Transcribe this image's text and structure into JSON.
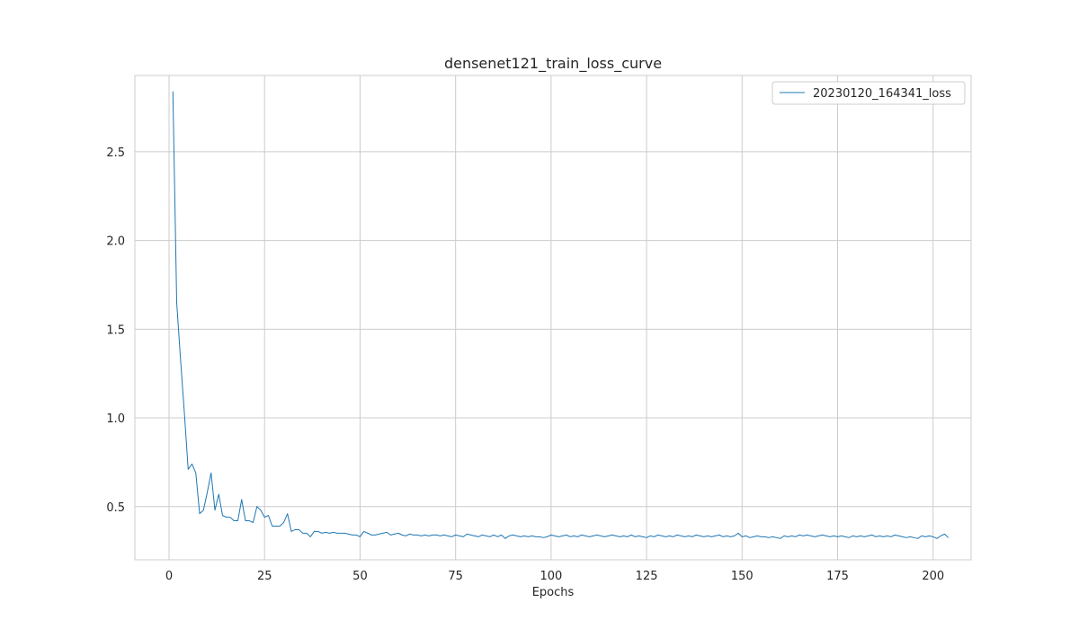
{
  "chart_data": {
    "type": "line",
    "title": "densenet121_train_loss_curve",
    "xlabel": "Epochs",
    "ylabel": "",
    "xlim": [
      -8.95,
      209.95
    ],
    "ylim": [
      0.2,
      2.93
    ],
    "xticks": [
      0,
      25,
      50,
      75,
      100,
      125,
      150,
      175,
      200
    ],
    "yticks": [
      0.5,
      1.0,
      1.5,
      2.0,
      2.5
    ],
    "ytick_labels": [
      "0.5",
      "1.0",
      "1.5",
      "2.0",
      "2.5"
    ],
    "grid": true,
    "legend_position": "top-right",
    "series": [
      {
        "name": "20230120_164341_loss",
        "color": "#1f77b4",
        "x_start": 1,
        "x_step": 1,
        "values": [
          2.84,
          1.65,
          1.33,
          1.03,
          0.71,
          0.74,
          0.69,
          0.46,
          0.48,
          0.58,
          0.69,
          0.48,
          0.57,
          0.45,
          0.44,
          0.44,
          0.42,
          0.42,
          0.54,
          0.42,
          0.42,
          0.41,
          0.5,
          0.48,
          0.44,
          0.45,
          0.39,
          0.39,
          0.39,
          0.41,
          0.46,
          0.36,
          0.37,
          0.37,
          0.35,
          0.35,
          0.33,
          0.36,
          0.36,
          0.35,
          0.355,
          0.35,
          0.355,
          0.35,
          0.35,
          0.35,
          0.345,
          0.34,
          0.34,
          0.33,
          0.36,
          0.35,
          0.34,
          0.34,
          0.345,
          0.35,
          0.355,
          0.34,
          0.345,
          0.35,
          0.34,
          0.335,
          0.345,
          0.34,
          0.34,
          0.335,
          0.34,
          0.335,
          0.34,
          0.34,
          0.335,
          0.34,
          0.335,
          0.33,
          0.34,
          0.335,
          0.33,
          0.345,
          0.34,
          0.335,
          0.33,
          0.34,
          0.335,
          0.33,
          0.34,
          0.33,
          0.34,
          0.32,
          0.335,
          0.34,
          0.335,
          0.33,
          0.335,
          0.33,
          0.335,
          0.33,
          0.33,
          0.325,
          0.33,
          0.34,
          0.335,
          0.33,
          0.335,
          0.34,
          0.33,
          0.335,
          0.33,
          0.34,
          0.335,
          0.33,
          0.335,
          0.34,
          0.335,
          0.33,
          0.335,
          0.34,
          0.335,
          0.33,
          0.335,
          0.33,
          0.34,
          0.33,
          0.335,
          0.33,
          0.325,
          0.335,
          0.33,
          0.34,
          0.335,
          0.33,
          0.335,
          0.33,
          0.34,
          0.335,
          0.33,
          0.335,
          0.33,
          0.34,
          0.335,
          0.33,
          0.335,
          0.33,
          0.335,
          0.34,
          0.33,
          0.335,
          0.33,
          0.335,
          0.35,
          0.33,
          0.335,
          0.325,
          0.33,
          0.335,
          0.33,
          0.33,
          0.325,
          0.33,
          0.325,
          0.32,
          0.335,
          0.33,
          0.335,
          0.33,
          0.34,
          0.335,
          0.34,
          0.335,
          0.33,
          0.335,
          0.34,
          0.335,
          0.33,
          0.335,
          0.33,
          0.335,
          0.33,
          0.325,
          0.335,
          0.33,
          0.335,
          0.33,
          0.335,
          0.34,
          0.33,
          0.335,
          0.33,
          0.335,
          0.33,
          0.34,
          0.335,
          0.33,
          0.325,
          0.33,
          0.325,
          0.32,
          0.335,
          0.33,
          0.335,
          0.33,
          0.32,
          0.335,
          0.345,
          0.325
        ]
      }
    ]
  }
}
